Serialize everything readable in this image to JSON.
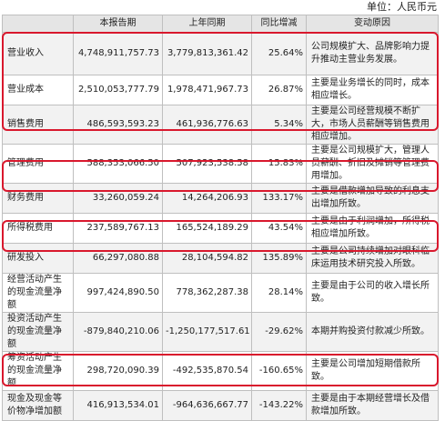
{
  "unit_label": "单位：人民币元",
  "headers": [
    "",
    "本报告期",
    "上年同期",
    "同比增减",
    "变动原因"
  ],
  "rows": [
    {
      "item": "营业收入",
      "current": "4,748,911,757.73",
      "prior": "3,779,813,361.42",
      "change": "25.64%",
      "reason": "公司规模扩大、品牌影响力提升推动主营业务发展。"
    },
    {
      "item": "营业成本",
      "current": "2,510,053,777.79",
      "prior": "1,978,471,967.73",
      "change": "26.87%",
      "reason": "主要是业务增长的同时，成本相应增长。"
    },
    {
      "item": "销售费用",
      "current": "486,593,593.23",
      "prior": "461,936,776.63",
      "change": "5.34%",
      "reason": "主要是公司经营规模不断扩大，市场人员薪酬等销售费用相应增加。"
    },
    {
      "item": "管理费用",
      "current": "588,353,066.50",
      "prior": "507,923,538.58",
      "change": "15.83%",
      "reason": "主要是公司规模扩大，管理人员薪酬、折旧及摊销等管理费用增加。"
    },
    {
      "item": "财务费用",
      "current": "33,260,059.24",
      "prior": "14,264,206.93",
      "change": "133.17%",
      "reason": "主要是借款增加导致的利息支出增加所致。"
    },
    {
      "item": "所得税费用",
      "current": "237,589,767.13",
      "prior": "165,524,189.29",
      "change": "43.54%",
      "reason": "主要是由于利润增加，所得税相应增加所致。"
    },
    {
      "item": "研发投入",
      "current": "66,297,080.88",
      "prior": "28,104,594.82",
      "change": "135.89%",
      "reason": "主要是公司持续增加对眼科临床运用技术研究投入所致。"
    },
    {
      "item": "经营活动产生的现金流量净额",
      "current": "997,424,890.50",
      "prior": "778,362,287.38",
      "change": "28.14%",
      "reason": "主要是由于公司的收入增长所致。"
    },
    {
      "item": "投资活动产生的现金流量净额",
      "current": "-879,840,210.06",
      "prior": "-1,250,177,517.61",
      "change": "-29.62%",
      "reason": "本期并购投资付款减少所致。"
    },
    {
      "item": "筹资活动产生的现金流量净额",
      "current": "298,720,090.39",
      "prior": "-492,535,870.54",
      "change": "-160.65%",
      "reason": "主要是公司增加短期借款所致。"
    },
    {
      "item": "现金及现金等价物净增加额",
      "current": "416,913,534.01",
      "prior": "-964,636,667.77",
      "change": "-143.22%",
      "reason": "主要是由于本期经营增长及借款增加所致。"
    }
  ]
}
